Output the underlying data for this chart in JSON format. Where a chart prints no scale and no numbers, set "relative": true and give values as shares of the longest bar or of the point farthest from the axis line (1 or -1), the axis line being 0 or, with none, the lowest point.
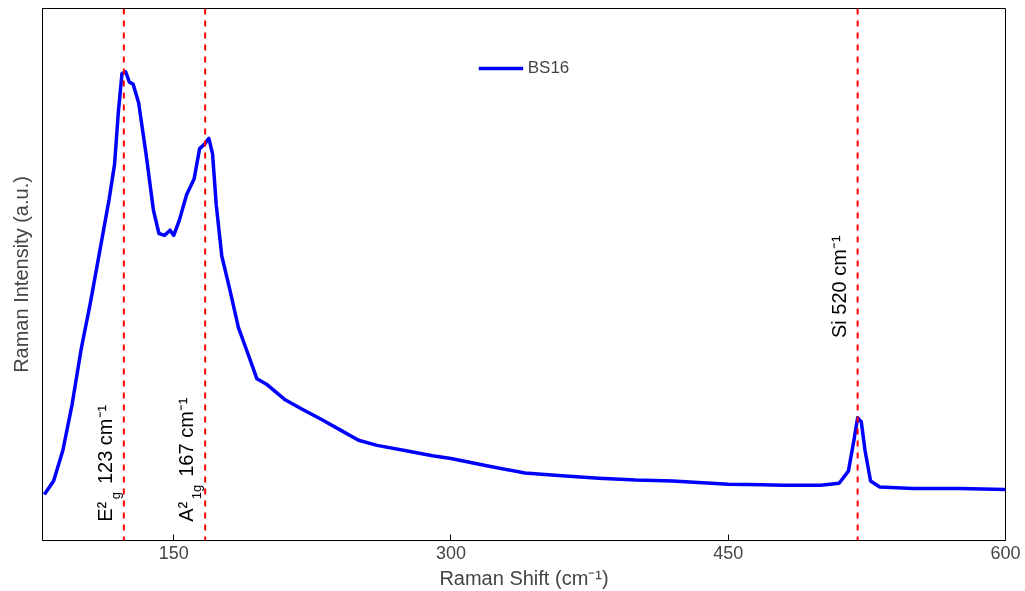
{
  "chart_data": {
    "type": "line",
    "relative": true,
    "xlabel": "Raman Shift (cm⁻¹)",
    "ylabel": "Raman Intensity (a.u.)",
    "xlim": [
      79,
      600
    ],
    "xticks": [
      150,
      300,
      450,
      600
    ],
    "grid": false,
    "legend": "top",
    "line_style": "solid",
    "marker": "none",
    "x": [
      80,
      85,
      90,
      95,
      100,
      105,
      110,
      115,
      118,
      120,
      122,
      124,
      126,
      128,
      131,
      135,
      139,
      142,
      145,
      148,
      150,
      153,
      157,
      161,
      164,
      167,
      169,
      171,
      173,
      176,
      180,
      185,
      190,
      195,
      200,
      210,
      220,
      230,
      240,
      250,
      260,
      275,
      290,
      300,
      320,
      340,
      360,
      380,
      400,
      420,
      450,
      480,
      500,
      510,
      515,
      518,
      520,
      522,
      524,
      527,
      532,
      550,
      575,
      600
    ],
    "series": [
      {
        "name": "BS16",
        "color": "#0000ff",
        "values": [
          0.098,
          0.127,
          0.192,
          0.29,
          0.41,
          0.509,
          0.618,
          0.727,
          0.803,
          0.913,
          0.996,
          1,
          0.978,
          0.974,
          0.934,
          0.825,
          0.705,
          0.655,
          0.651,
          0.662,
          0.651,
          0.683,
          0.738,
          0.771,
          0.836,
          0.847,
          0.858,
          0.825,
          0.716,
          0.607,
          0.541,
          0.454,
          0.4,
          0.345,
          0.334,
          0.301,
          0.279,
          0.258,
          0.236,
          0.214,
          0.203,
          0.192,
          0.181,
          0.175,
          0.159,
          0.144,
          0.138,
          0.133,
          0.129,
          0.127,
          0.12,
          0.118,
          0.118,
          0.122,
          0.148,
          0.214,
          0.262,
          0.253,
          0.192,
          0.127,
          0.114,
          0.111,
          0.111,
          0.109
        ]
      }
    ],
    "ref_lines": [
      {
        "axis": "x",
        "value": 123,
        "label": "E²$_{g}$ 123 cm⁻¹",
        "color": "#ff0000",
        "line_style": "dashed"
      },
      {
        "axis": "x",
        "value": 167,
        "label": "A²$_{1g}$ 167 cm⁻¹",
        "color": "#ff0000",
        "line_style": "dashed"
      },
      {
        "axis": "x",
        "value": 520,
        "label": "Si 520 cm⁻¹",
        "color": "#ff0000",
        "line_style": "dashed"
      }
    ]
  }
}
